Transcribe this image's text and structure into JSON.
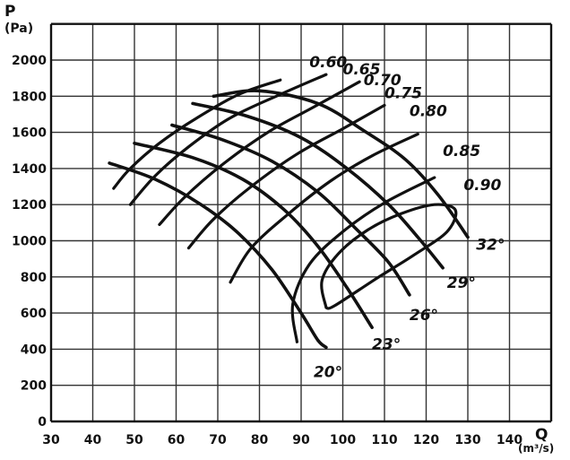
{
  "chart_data": {
    "type": "line",
    "title": "",
    "xlabel": "Q",
    "xlabel_unit": "(m³/s)",
    "ylabel": "P",
    "ylabel_unit": "(Pa)",
    "xlim": [
      30,
      150
    ],
    "ylim": [
      0,
      2200
    ],
    "x_ticks": [
      "30",
      "40",
      "50",
      "60",
      "70",
      "80",
      "90",
      "100",
      "110",
      "120",
      "130",
      "140"
    ],
    "y_ticks": [
      "0",
      "200",
      "400",
      "600",
      "800",
      "1000",
      "1200",
      "1400",
      "1600",
      "1800",
      "2000"
    ],
    "grid": true,
    "angle_curves": [
      {
        "name": "20°",
        "points": [
          [
            44,
            1430
          ],
          [
            55,
            1340
          ],
          [
            66,
            1200
          ],
          [
            75,
            1040
          ],
          [
            83,
            840
          ],
          [
            90,
            600
          ],
          [
            94,
            450
          ],
          [
            96,
            410
          ]
        ]
      },
      {
        "name": "23°",
        "points": [
          [
            50,
            1540
          ],
          [
            64,
            1460
          ],
          [
            76,
            1340
          ],
          [
            86,
            1170
          ],
          [
            94,
            970
          ],
          [
            101,
            740
          ],
          [
            107,
            520
          ]
        ]
      },
      {
        "name": "26°",
        "points": [
          [
            59,
            1640
          ],
          [
            71,
            1560
          ],
          [
            83,
            1440
          ],
          [
            94,
            1270
          ],
          [
            103,
            1070
          ],
          [
            111,
            880
          ],
          [
            116,
            700
          ]
        ]
      },
      {
        "name": "29°",
        "points": [
          [
            64,
            1760
          ],
          [
            77,
            1690
          ],
          [
            90,
            1570
          ],
          [
            101,
            1400
          ],
          [
            111,
            1200
          ],
          [
            118,
            1020
          ],
          [
            124,
            850
          ]
        ]
      },
      {
        "name": "32°",
        "points": [
          [
            69,
            1800
          ],
          [
            80,
            1830
          ],
          [
            94,
            1760
          ],
          [
            105,
            1610
          ],
          [
            115,
            1450
          ],
          [
            123,
            1250
          ],
          [
            130,
            1020
          ]
        ]
      }
    ],
    "efficiency_curves": [
      {
        "name": "0.60",
        "points": [
          [
            45,
            1290
          ],
          [
            49,
            1400
          ],
          [
            56,
            1540
          ],
          [
            65,
            1680
          ],
          [
            75,
            1810
          ],
          [
            85,
            1890
          ]
        ]
      },
      {
        "name": "0.65",
        "points": [
          [
            49,
            1200
          ],
          [
            55,
            1360
          ],
          [
            63,
            1520
          ],
          [
            73,
            1680
          ],
          [
            85,
            1810
          ],
          [
            96,
            1920
          ]
        ]
      },
      {
        "name": "0.70",
        "points": [
          [
            56,
            1090
          ],
          [
            62,
            1240
          ],
          [
            71,
            1420
          ],
          [
            82,
            1600
          ],
          [
            93,
            1740
          ],
          [
            104,
            1880
          ]
        ]
      },
      {
        "name": "0.75",
        "points": [
          [
            63,
            960
          ],
          [
            69,
            1120
          ],
          [
            78,
            1300
          ],
          [
            89,
            1480
          ],
          [
            100,
            1620
          ],
          [
            110,
            1750
          ]
        ]
      },
      {
        "name": "0.80",
        "points": [
          [
            73,
            770
          ],
          [
            78,
            960
          ],
          [
            87,
            1150
          ],
          [
            97,
            1330
          ],
          [
            107,
            1470
          ],
          [
            118,
            1590
          ]
        ]
      },
      {
        "name": "0.85",
        "points": [
          [
            89,
            440
          ],
          [
            88,
            650
          ],
          [
            92,
            870
          ],
          [
            100,
            1050
          ],
          [
            110,
            1210
          ],
          [
            122,
            1350
          ]
        ]
      },
      {
        "name": "0.90",
        "points": [
          [
            96,
            630
          ],
          [
            95,
            780
          ],
          [
            99,
            930
          ],
          [
            106,
            1060
          ],
          [
            114,
            1150
          ],
          [
            122,
            1200
          ],
          [
            127,
            1170
          ],
          [
            125,
            1050
          ],
          [
            117,
            920
          ],
          [
            108,
            790
          ],
          [
            98,
            640
          ],
          [
            96,
            630
          ]
        ]
      }
    ]
  }
}
